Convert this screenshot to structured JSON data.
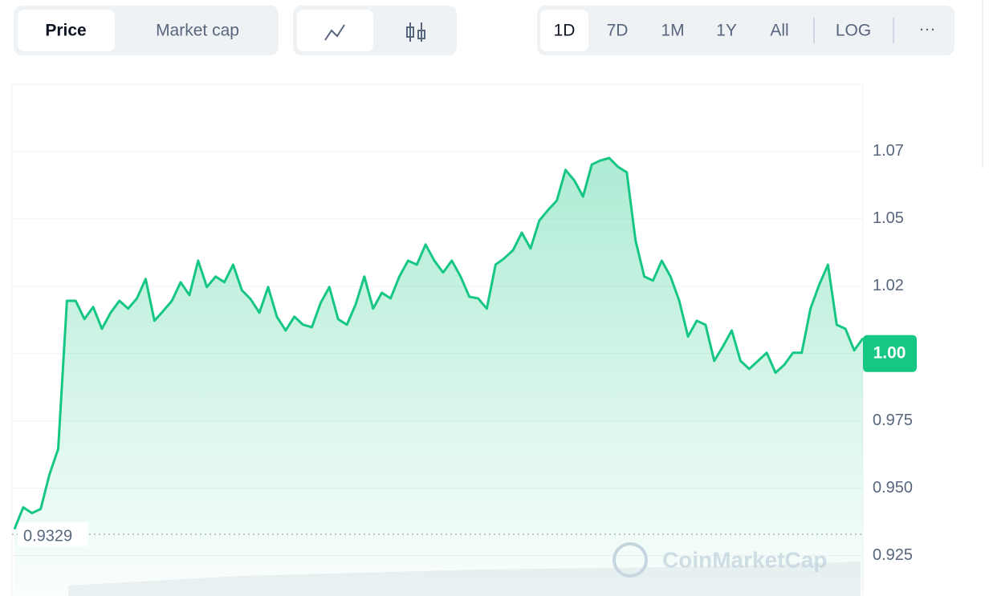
{
  "toolbar": {
    "views": [
      "Price",
      "Market cap"
    ],
    "ranges": [
      "1D",
      "7D",
      "1M",
      "1Y",
      "All",
      "LOG"
    ],
    "more": "···"
  },
  "chart_data": {
    "type": "line",
    "color": "#16c784",
    "values": [
      0.9348,
      0.9429,
      0.9408,
      0.9423,
      0.9551,
      0.9646,
      1.0196,
      1.0196,
      1.0128,
      1.0173,
      1.0092,
      1.0152,
      1.0196,
      1.0167,
      1.0205,
      1.0277,
      1.0122,
      1.0158,
      1.0196,
      1.0265,
      1.0217,
      1.0345,
      1.0247,
      1.0286,
      1.0265,
      1.033,
      1.0235,
      1.0202,
      1.0152,
      1.0247,
      1.0137,
      1.0086,
      1.0137,
      1.0107,
      1.0098,
      1.0188,
      1.0247,
      1.0128,
      1.0107,
      1.0182,
      1.0286,
      1.0167,
      1.0226,
      1.0205,
      1.0286,
      1.0345,
      1.033,
      1.0405,
      1.0345,
      1.0301,
      1.0345,
      1.0286,
      1.0211,
      1.0205,
      1.0167,
      1.033,
      1.0354,
      1.0384,
      1.0449,
      1.039,
      1.0494,
      1.0533,
      1.0568,
      1.0682,
      1.0643,
      1.0583,
      1.0702,
      1.0717,
      1.0726,
      1.0693,
      1.0673,
      1.042,
      1.0286,
      1.0271,
      1.0345,
      1.0286,
      1.0196,
      1.0063,
      1.0122,
      1.0107,
      0.9973,
      1.0027,
      1.0086,
      0.9973,
      0.9943,
      0.9973,
      1.0003,
      0.9929,
      0.9958,
      1.0003,
      1.0003,
      1.0167,
      1.0256,
      1.033,
      1.0107,
      1.0092,
      1.0012,
      1.0057
    ],
    "ylim": [
      0.91,
      1.1
    ],
    "yticks": [
      {
        "value": 0.925,
        "label": "0.925"
      },
      {
        "value": 0.95,
        "label": "0.950"
      },
      0.975,
      {
        "value": 1.0,
        "label": "1.00"
      },
      {
        "value": 1.025,
        "label": "1.02"
      },
      1.05,
      {
        "value": 1.075,
        "label": "1.07"
      }
    ],
    "grid": true,
    "reference_line": 0.9329,
    "current_price": {
      "value": 1.0,
      "label": "1.00"
    },
    "watermark": "CoinMarketCap"
  }
}
